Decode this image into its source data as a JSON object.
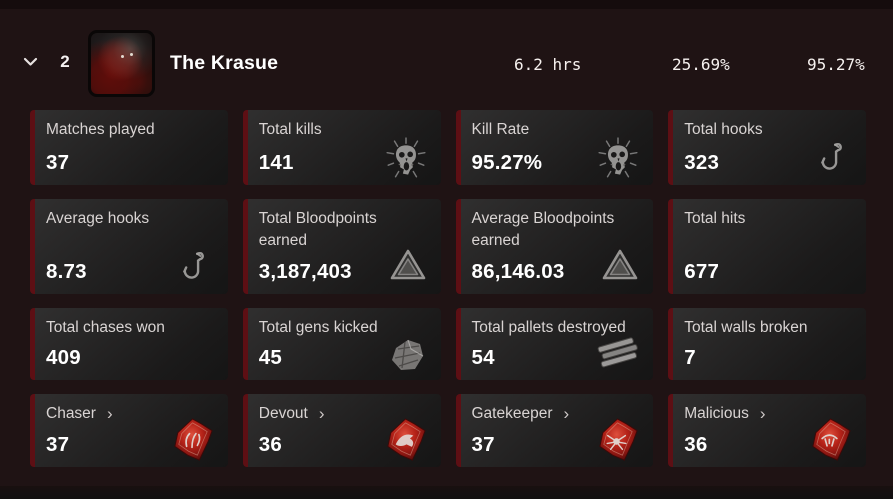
{
  "header": {
    "rank": "2",
    "name": "The Krasue",
    "hours": "6.2 hrs",
    "pick_rate": "25.69%",
    "kill_rate": "95.27%"
  },
  "glyphs": {
    "link_chevron": "›"
  },
  "cards": [
    {
      "label": "Matches played",
      "value": "37",
      "icon": null,
      "link": false
    },
    {
      "label": "Total kills",
      "value": "141",
      "icon": "skull",
      "link": false
    },
    {
      "label": "Kill Rate",
      "value": "95.27%",
      "icon": "skull",
      "link": false
    },
    {
      "label": "Total hooks",
      "value": "323",
      "icon": "hook",
      "link": false
    },
    {
      "label": "Average hooks",
      "value": "8.73",
      "icon": "hook",
      "link": false
    },
    {
      "label": "Total Bloodpoints earned",
      "value": "3,187,403",
      "icon": "bloodpoints",
      "link": false
    },
    {
      "label": "Average Bloodpoints earned",
      "value": "86,146.03",
      "icon": "bloodpoints",
      "link": false
    },
    {
      "label": "Total hits",
      "value": "677",
      "icon": null,
      "link": false
    },
    {
      "label": "Total chases won",
      "value": "409",
      "icon": null,
      "link": false
    },
    {
      "label": "Total gens kicked",
      "value": "45",
      "icon": "generator",
      "link": false
    },
    {
      "label": "Total pallets destroyed",
      "value": "54",
      "icon": "pallet",
      "link": false
    },
    {
      "label": "Total walls broken",
      "value": "7",
      "icon": null,
      "link": false
    },
    {
      "label": "Chaser",
      "value": "37",
      "icon": "emblem-chaser",
      "link": true
    },
    {
      "label": "Devout",
      "value": "36",
      "icon": "emblem-devout",
      "link": true
    },
    {
      "label": "Gatekeeper",
      "value": "37",
      "icon": "emblem-gatekeeper",
      "link": true
    },
    {
      "label": "Malicious",
      "value": "36",
      "icon": "emblem-malicious",
      "link": true
    }
  ],
  "colors": {
    "background": "#1f1314",
    "accent_red": "#5d0f14",
    "emblem_red": "#c22318",
    "icon_gray": "#a8a8a8",
    "label_text": "#d9d4d3",
    "value_text": "#ffffff"
  }
}
